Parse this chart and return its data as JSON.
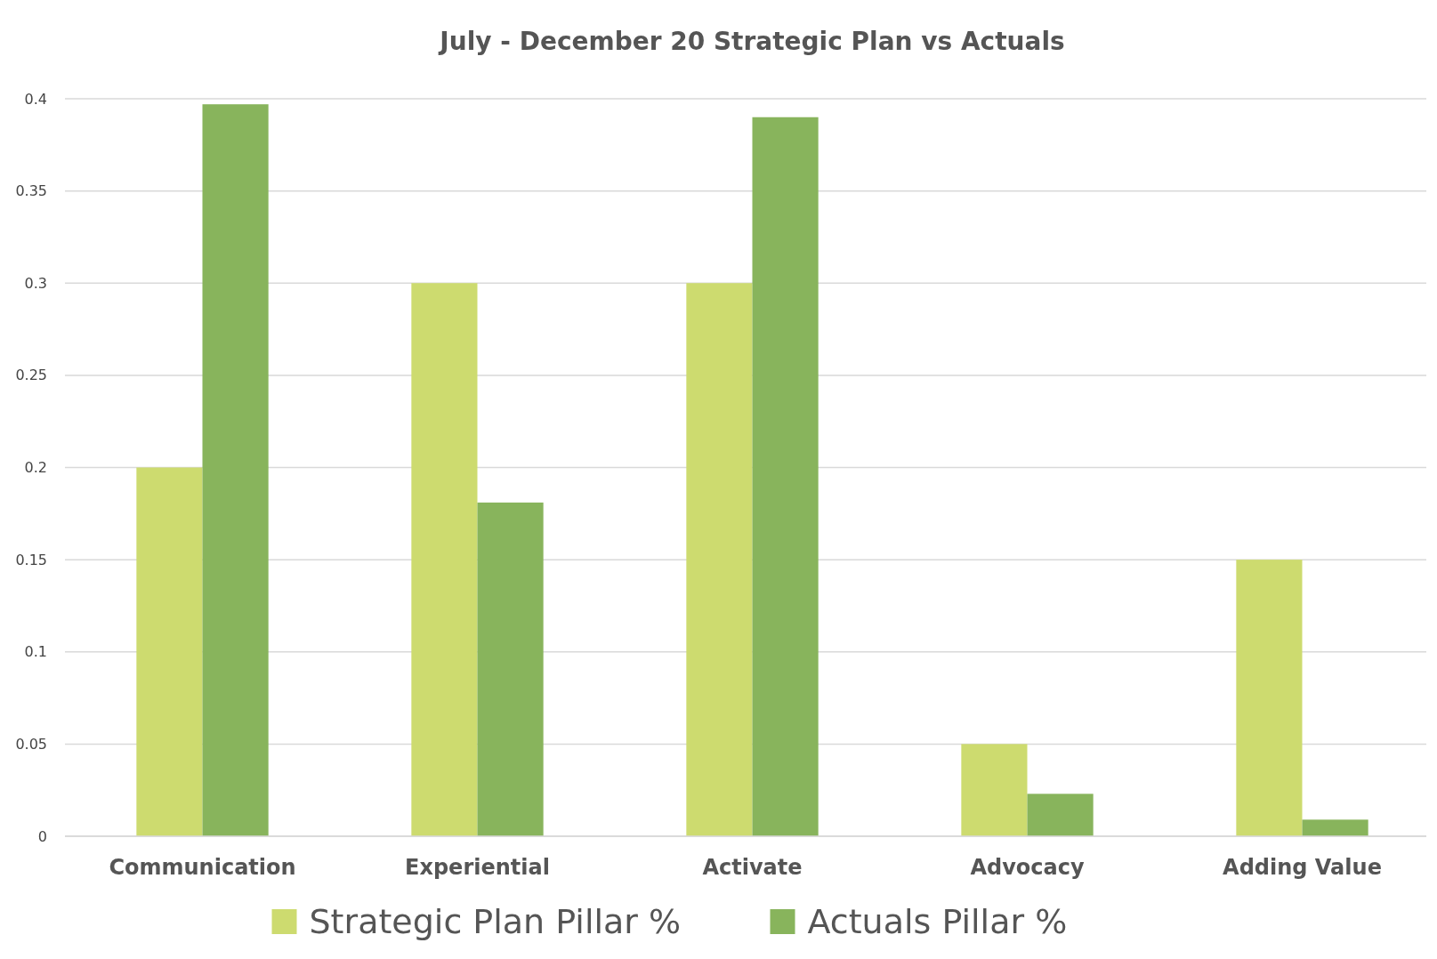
{
  "chart_data": {
    "type": "bar",
    "title": "July - December 20 Strategic Plan vs Actuals",
    "categories": [
      "Communication",
      "Experiential",
      "Activate",
      "Advocacy",
      "Adding Value"
    ],
    "series": [
      {
        "name": "Strategic Plan Pillar %",
        "color": "#cddb6f",
        "values": [
          0.2,
          0.3,
          0.3,
          0.05,
          0.15
        ]
      },
      {
        "name": "Actuals Pillar %",
        "color": "#88b45c",
        "values": [
          0.397,
          0.181,
          0.39,
          0.023,
          0.009
        ]
      }
    ],
    "ylim": [
      0,
      0.4
    ],
    "yticks": [
      0,
      0.05,
      0.1,
      0.15,
      0.2,
      0.25,
      0.3,
      0.35,
      0.4
    ],
    "grid": "y",
    "legend": "bottom"
  }
}
